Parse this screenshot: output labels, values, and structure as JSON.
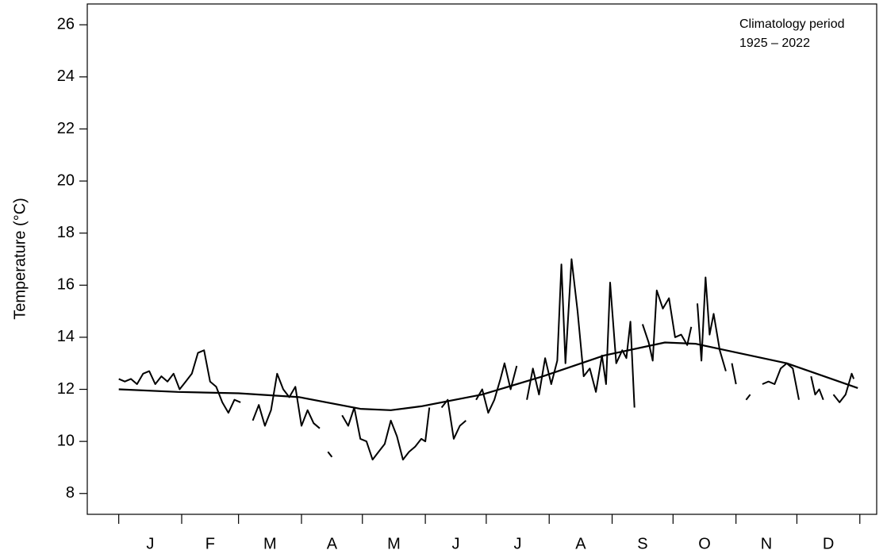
{
  "chart_data": {
    "type": "line",
    "y_label": "Temperature (°C)",
    "annotations": [
      "Climatology period",
      "1925 – 2022"
    ],
    "categories": [
      "J",
      "F",
      "M",
      "A",
      "M",
      "J",
      "J",
      "A",
      "S",
      "O",
      "N",
      "D"
    ],
    "xticks": [
      1,
      32,
      60,
      91,
      121,
      152,
      182,
      213,
      244,
      274,
      305,
      335,
      366
    ],
    "xlim": [
      -14.5,
      374.3
    ],
    "ylim": [
      7.2,
      26.8
    ],
    "yticks": [
      8,
      10,
      12,
      14,
      16,
      18,
      20,
      22,
      24,
      26
    ],
    "grid": false,
    "series": [
      {
        "color": "#000000",
        "x": [
          1,
          4,
          7,
          10,
          13,
          16,
          19,
          22,
          25,
          28,
          31,
          34,
          37,
          40,
          43,
          46,
          49,
          52,
          55,
          58,
          61,
          64,
          67,
          70,
          73,
          76,
          79,
          82,
          85,
          88,
          91,
          94,
          97,
          100,
          103,
          104,
          106,
          108,
          111,
          114,
          117,
          120,
          123,
          126,
          129,
          132,
          135,
          138,
          141,
          144,
          147,
          150,
          152,
          154,
          157,
          160,
          163,
          166,
          169,
          172,
          175,
          177,
          180,
          183,
          186,
          189,
          191,
          194,
          197,
          199,
          202,
          205,
          208,
          211,
          214,
          217,
          219,
          221,
          224,
          227,
          230,
          233,
          236,
          239,
          241,
          243,
          246,
          249,
          251,
          253,
          255,
          257,
          259,
          262,
          264,
          266,
          269,
          272,
          275,
          278,
          281,
          283,
          285,
          286,
          288,
          290,
          292,
          294,
          297,
          300,
          302,
          303,
          305,
          307,
          310,
          312,
          314,
          318,
          321,
          324,
          327,
          330,
          333,
          336,
          338,
          342,
          344,
          346,
          348,
          350,
          353,
          356,
          359,
          362,
          363
        ],
        "values": [
          12.4,
          12.3,
          12.4,
          12.2,
          12.6,
          12.7,
          12.2,
          12.5,
          12.3,
          12.6,
          12.0,
          12.3,
          12.6,
          13.4,
          13.5,
          12.3,
          12.1,
          11.5,
          11.1,
          11.6,
          11.5,
          null,
          10.8,
          11.4,
          10.6,
          11.2,
          12.6,
          12.0,
          11.7,
          12.1,
          10.6,
          11.2,
          10.7,
          10.5,
          null,
          9.6,
          9.4,
          null,
          11.0,
          10.6,
          11.3,
          10.1,
          10.0,
          9.3,
          9.6,
          9.9,
          10.8,
          10.2,
          9.3,
          9.6,
          9.8,
          10.1,
          10.0,
          11.3,
          null,
          11.3,
          11.6,
          10.1,
          10.6,
          10.8,
          null,
          11.6,
          12.0,
          11.1,
          11.6,
          12.4,
          13.0,
          12.0,
          12.9,
          null,
          11.6,
          12.8,
          11.8,
          13.2,
          12.2,
          13.1,
          16.8,
          13.0,
          17.0,
          15.0,
          12.5,
          12.8,
          11.9,
          13.3,
          12.2,
          16.1,
          13.0,
          13.5,
          13.2,
          14.6,
          11.3,
          null,
          14.5,
          13.8,
          13.1,
          15.8,
          15.1,
          15.5,
          14.0,
          14.1,
          13.7,
          14.4,
          null,
          15.3,
          13.1,
          16.3,
          14.1,
          14.9,
          13.5,
          12.7,
          null,
          13.0,
          12.2,
          null,
          11.6,
          11.8,
          null,
          12.2,
          12.3,
          12.2,
          12.8,
          13.0,
          12.8,
          11.6,
          null,
          12.5,
          11.8,
          12.0,
          11.6,
          null,
          11.8,
          11.5,
          11.8,
          12.6,
          12.4
        ]
      },
      {
        "color": "#000000",
        "x": [
          1,
          30,
          60,
          90,
          120,
          135,
          150,
          180,
          210,
          240,
          270,
          285,
          300,
          330,
          365
        ],
        "values": [
          12.0,
          11.9,
          11.85,
          11.7,
          11.25,
          11.2,
          11.35,
          11.8,
          12.5,
          13.3,
          13.8,
          13.75,
          13.5,
          13.0,
          12.05
        ]
      }
    ]
  }
}
